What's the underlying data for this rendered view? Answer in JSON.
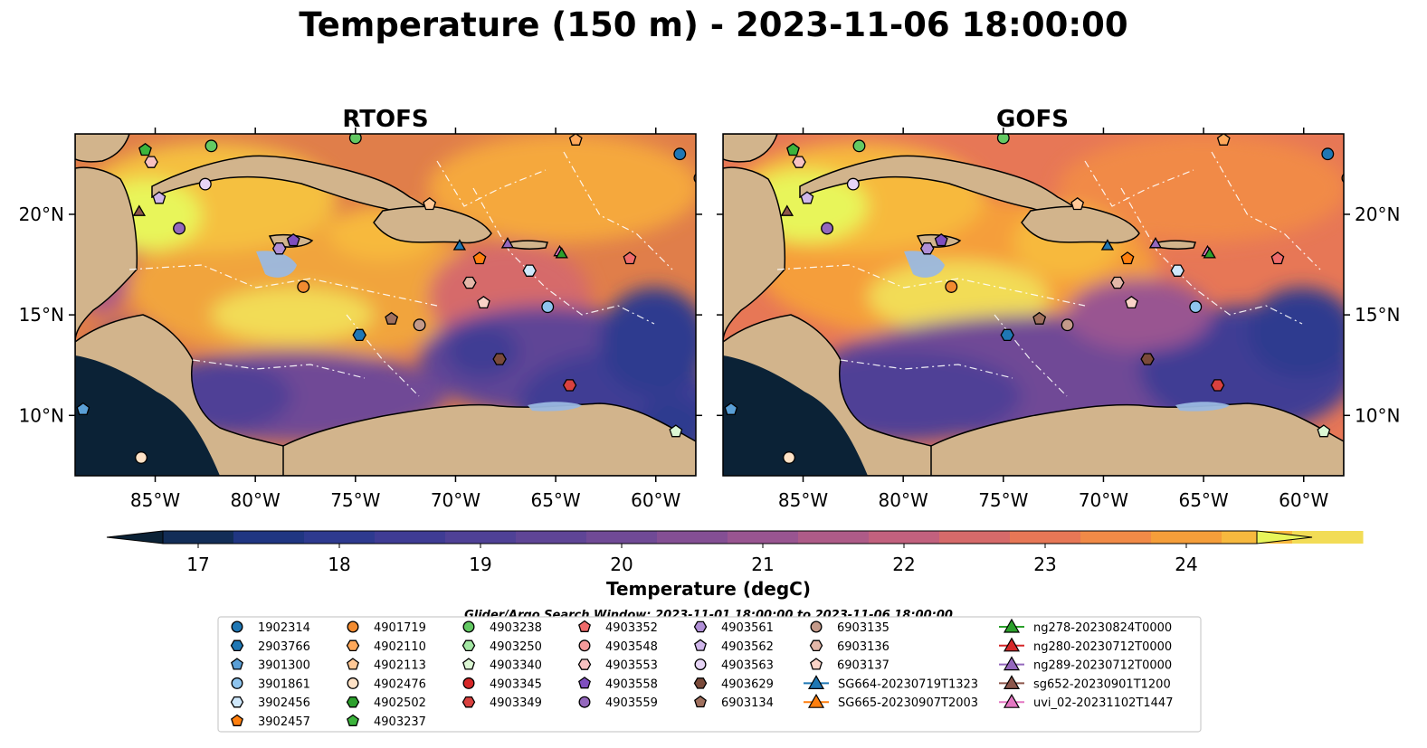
{
  "title": "Temperature (150 m) - 2023-11-06 18:00:00",
  "panels": [
    {
      "title": "RTOFS"
    },
    {
      "title": "GOFS"
    }
  ],
  "map": {
    "lon_range": [
      -89,
      -58
    ],
    "lat_range": [
      7,
      24
    ],
    "lon_ticks": [
      "85°W",
      "80°W",
      "75°W",
      "70°W",
      "65°W",
      "60°W"
    ],
    "lat_ticks": [
      "20°N",
      "15°N",
      "10°N"
    ],
    "land_color": "#d2b48c",
    "shelf_color": "#9ab8e0",
    "deep_pacific_color": "#0b2236"
  },
  "colorbar": {
    "label": "Temperature (degC)",
    "ticks": [
      "17",
      "18",
      "19",
      "20",
      "21",
      "22",
      "23",
      "24"
    ],
    "min": 16.75,
    "max": 24.5,
    "step": 0.5,
    "extend": "both",
    "colors": [
      "#0b2236",
      "#122d57",
      "#203682",
      "#2e3a8f",
      "#3f3c94",
      "#4f4196",
      "#5f4596",
      "#704a96",
      "#844f94",
      "#995591",
      "#ae5b88",
      "#c2617e",
      "#d66a6a",
      "#e77756",
      "#f18a47",
      "#f59e3a",
      "#f7b93e",
      "#f2dc56",
      "#e8f55a"
    ]
  },
  "legend": {
    "window_text": "Glider/Argo Search Window: 2023-11-01 18:00:00 to 2023-11-06 18:00:00",
    "columns": [
      [
        {
          "label": "1902314",
          "marker": "circle",
          "color": "#1f77b4"
        },
        {
          "label": "2903766",
          "marker": "hexagon",
          "color": "#1f77b4"
        },
        {
          "label": "3901300",
          "marker": "pentagon",
          "color": "#5a9fd6"
        },
        {
          "label": "3901861",
          "marker": "circle",
          "color": "#8ec4ee"
        },
        {
          "label": "3902456",
          "marker": "hexagon",
          "color": "#cfe8fb"
        },
        {
          "label": "3902457",
          "marker": "pentagon",
          "color": "#ff7f0e"
        }
      ],
      [
        {
          "label": "4901719",
          "marker": "circle",
          "color": "#f28b30"
        },
        {
          "label": "4902110",
          "marker": "hexagon",
          "color": "#ffa85a"
        },
        {
          "label": "4902113",
          "marker": "pentagon",
          "color": "#ffc896"
        },
        {
          "label": "4902476",
          "marker": "circle",
          "color": "#ffe2c6"
        },
        {
          "label": "4902502",
          "marker": "hexagon",
          "color": "#2ca02c"
        },
        {
          "label": "4903237",
          "marker": "pentagon",
          "color": "#3cb43c"
        }
      ],
      [
        {
          "label": "4903238",
          "marker": "circle",
          "color": "#63c963"
        },
        {
          "label": "4903250",
          "marker": "hexagon",
          "color": "#a3e6a3"
        },
        {
          "label": "4903340",
          "marker": "pentagon",
          "color": "#dcf7d4"
        },
        {
          "label": "4903345",
          "marker": "circle",
          "color": "#d62728"
        },
        {
          "label": "4903349",
          "marker": "hexagon",
          "color": "#d9413f"
        }
      ],
      [
        {
          "label": "4903352",
          "marker": "pentagon",
          "color": "#ef6b6b"
        },
        {
          "label": "4903548",
          "marker": "circle",
          "color": "#f49a9a"
        },
        {
          "label": "4903553",
          "marker": "hexagon",
          "color": "#f7c1c1"
        },
        {
          "label": "4903558",
          "marker": "pentagon",
          "color": "#7f4fbf"
        },
        {
          "label": "4903559",
          "marker": "circle",
          "color": "#9467bd"
        }
      ],
      [
        {
          "label": "4903561",
          "marker": "hexagon",
          "color": "#b08fd6"
        },
        {
          "label": "4903562",
          "marker": "pentagon",
          "color": "#cfb6ea"
        },
        {
          "label": "4903563",
          "marker": "circle",
          "color": "#e6d4f5"
        },
        {
          "label": "4903629",
          "marker": "hexagon",
          "color": "#7a4a3a"
        },
        {
          "label": "6903134",
          "marker": "pentagon",
          "color": "#a0705e"
        }
      ],
      [
        {
          "label": "6903135",
          "marker": "circle",
          "color": "#c49a8a"
        },
        {
          "label": "6903136",
          "marker": "hexagon",
          "color": "#e3b7a8"
        },
        {
          "label": "6903137",
          "marker": "pentagon",
          "color": "#fad4c8"
        },
        {
          "label": "SG664-20230719T1323",
          "marker": "triangle",
          "color": "#1f77b4"
        },
        {
          "label": "SG665-20230907T2003",
          "marker": "triangle",
          "color": "#ff7f0e"
        }
      ],
      [
        {
          "label": "ng278-20230824T0000",
          "marker": "triangle",
          "color": "#2ca02c"
        },
        {
          "label": "ng280-20230712T0000",
          "marker": "triangle",
          "color": "#d62728"
        },
        {
          "label": "ng289-20230712T0000",
          "marker": "triangle",
          "color": "#9467bd"
        },
        {
          "label": "sg652-20230901T1200",
          "marker": "triangle",
          "color": "#8c564b"
        },
        {
          "label": "uvi_02-20231102T1447",
          "marker": "triangle",
          "color": "#e377c2"
        }
      ]
    ]
  },
  "observations": [
    {
      "lon": -58.8,
      "lat": 23.0,
      "marker": "circle",
      "color": "#1f77b4"
    },
    {
      "lon": -57.8,
      "lat": 21.8,
      "marker": "circle",
      "color": "#f28b30"
    },
    {
      "lon": -64.0,
      "lat": 23.7,
      "marker": "pentagon",
      "color": "#ffa85a"
    },
    {
      "lon": -85.5,
      "lat": 23.2,
      "marker": "pentagon",
      "color": "#3cb43c"
    },
    {
      "lon": -82.2,
      "lat": 23.4,
      "marker": "circle",
      "color": "#63c963"
    },
    {
      "lon": -85.2,
      "lat": 22.6,
      "marker": "hexagon",
      "color": "#f7c1c1"
    },
    {
      "lon": -82.5,
      "lat": 21.5,
      "marker": "circle",
      "color": "#e6d4f5"
    },
    {
      "lon": -84.8,
      "lat": 20.8,
      "marker": "pentagon",
      "color": "#cfb6ea"
    },
    {
      "lon": -85.8,
      "lat": 20.1,
      "marker": "triangle",
      "color": "#8c564b"
    },
    {
      "lon": -83.8,
      "lat": 19.3,
      "marker": "circle",
      "color": "#9467bd"
    },
    {
      "lon": -78.8,
      "lat": 18.3,
      "marker": "hexagon",
      "color": "#b08fd6"
    },
    {
      "lon": -78.1,
      "lat": 18.7,
      "marker": "pentagon",
      "color": "#7f4fbf"
    },
    {
      "lon": -77.6,
      "lat": 16.4,
      "marker": "circle",
      "color": "#f28b30"
    },
    {
      "lon": -74.8,
      "lat": 14.0,
      "marker": "hexagon",
      "color": "#1f77b4"
    },
    {
      "lon": -73.2,
      "lat": 14.8,
      "marker": "pentagon",
      "color": "#a0705e"
    },
    {
      "lon": -71.8,
      "lat": 14.5,
      "marker": "circle",
      "color": "#c49a8a"
    },
    {
      "lon": -71.3,
      "lat": 20.5,
      "marker": "pentagon",
      "color": "#ffc896"
    },
    {
      "lon": -69.8,
      "lat": 18.4,
      "marker": "triangle",
      "color": "#1f77b4"
    },
    {
      "lon": -68.8,
      "lat": 17.8,
      "marker": "pentagon",
      "color": "#ff7f0e"
    },
    {
      "lon": -67.4,
      "lat": 18.5,
      "marker": "triangle",
      "color": "#9467bd"
    },
    {
      "lon": -66.3,
      "lat": 17.2,
      "marker": "hexagon",
      "color": "#cfe8fb"
    },
    {
      "lon": -64.8,
      "lat": 18.1,
      "marker": "triangle",
      "color": "#e377c2"
    },
    {
      "lon": -64.7,
      "lat": 18.0,
      "marker": "triangle",
      "color": "#2ca02c"
    },
    {
      "lon": -61.3,
      "lat": 17.8,
      "marker": "pentagon",
      "color": "#ef6b6b"
    },
    {
      "lon": -69.3,
      "lat": 16.6,
      "marker": "hexagon",
      "color": "#e3b7a8"
    },
    {
      "lon": -68.6,
      "lat": 15.6,
      "marker": "pentagon",
      "color": "#fad4c8"
    },
    {
      "lon": -65.4,
      "lat": 15.4,
      "marker": "circle",
      "color": "#8ec4ee"
    },
    {
      "lon": -67.8,
      "lat": 12.8,
      "marker": "hexagon",
      "color": "#7a4a3a"
    },
    {
      "lon": -64.3,
      "lat": 11.5,
      "marker": "hexagon",
      "color": "#d9413f"
    },
    {
      "lon": -88.6,
      "lat": 10.3,
      "marker": "pentagon",
      "color": "#5a9fd6"
    },
    {
      "lon": -85.7,
      "lat": 7.9,
      "marker": "circle",
      "color": "#ffe2c6"
    },
    {
      "lon": -59.0,
      "lat": 9.2,
      "marker": "pentagon",
      "color": "#dcf7d4"
    },
    {
      "lon": -75.0,
      "lat": 23.8,
      "marker": "circle",
      "color": "#63c963"
    }
  ]
}
